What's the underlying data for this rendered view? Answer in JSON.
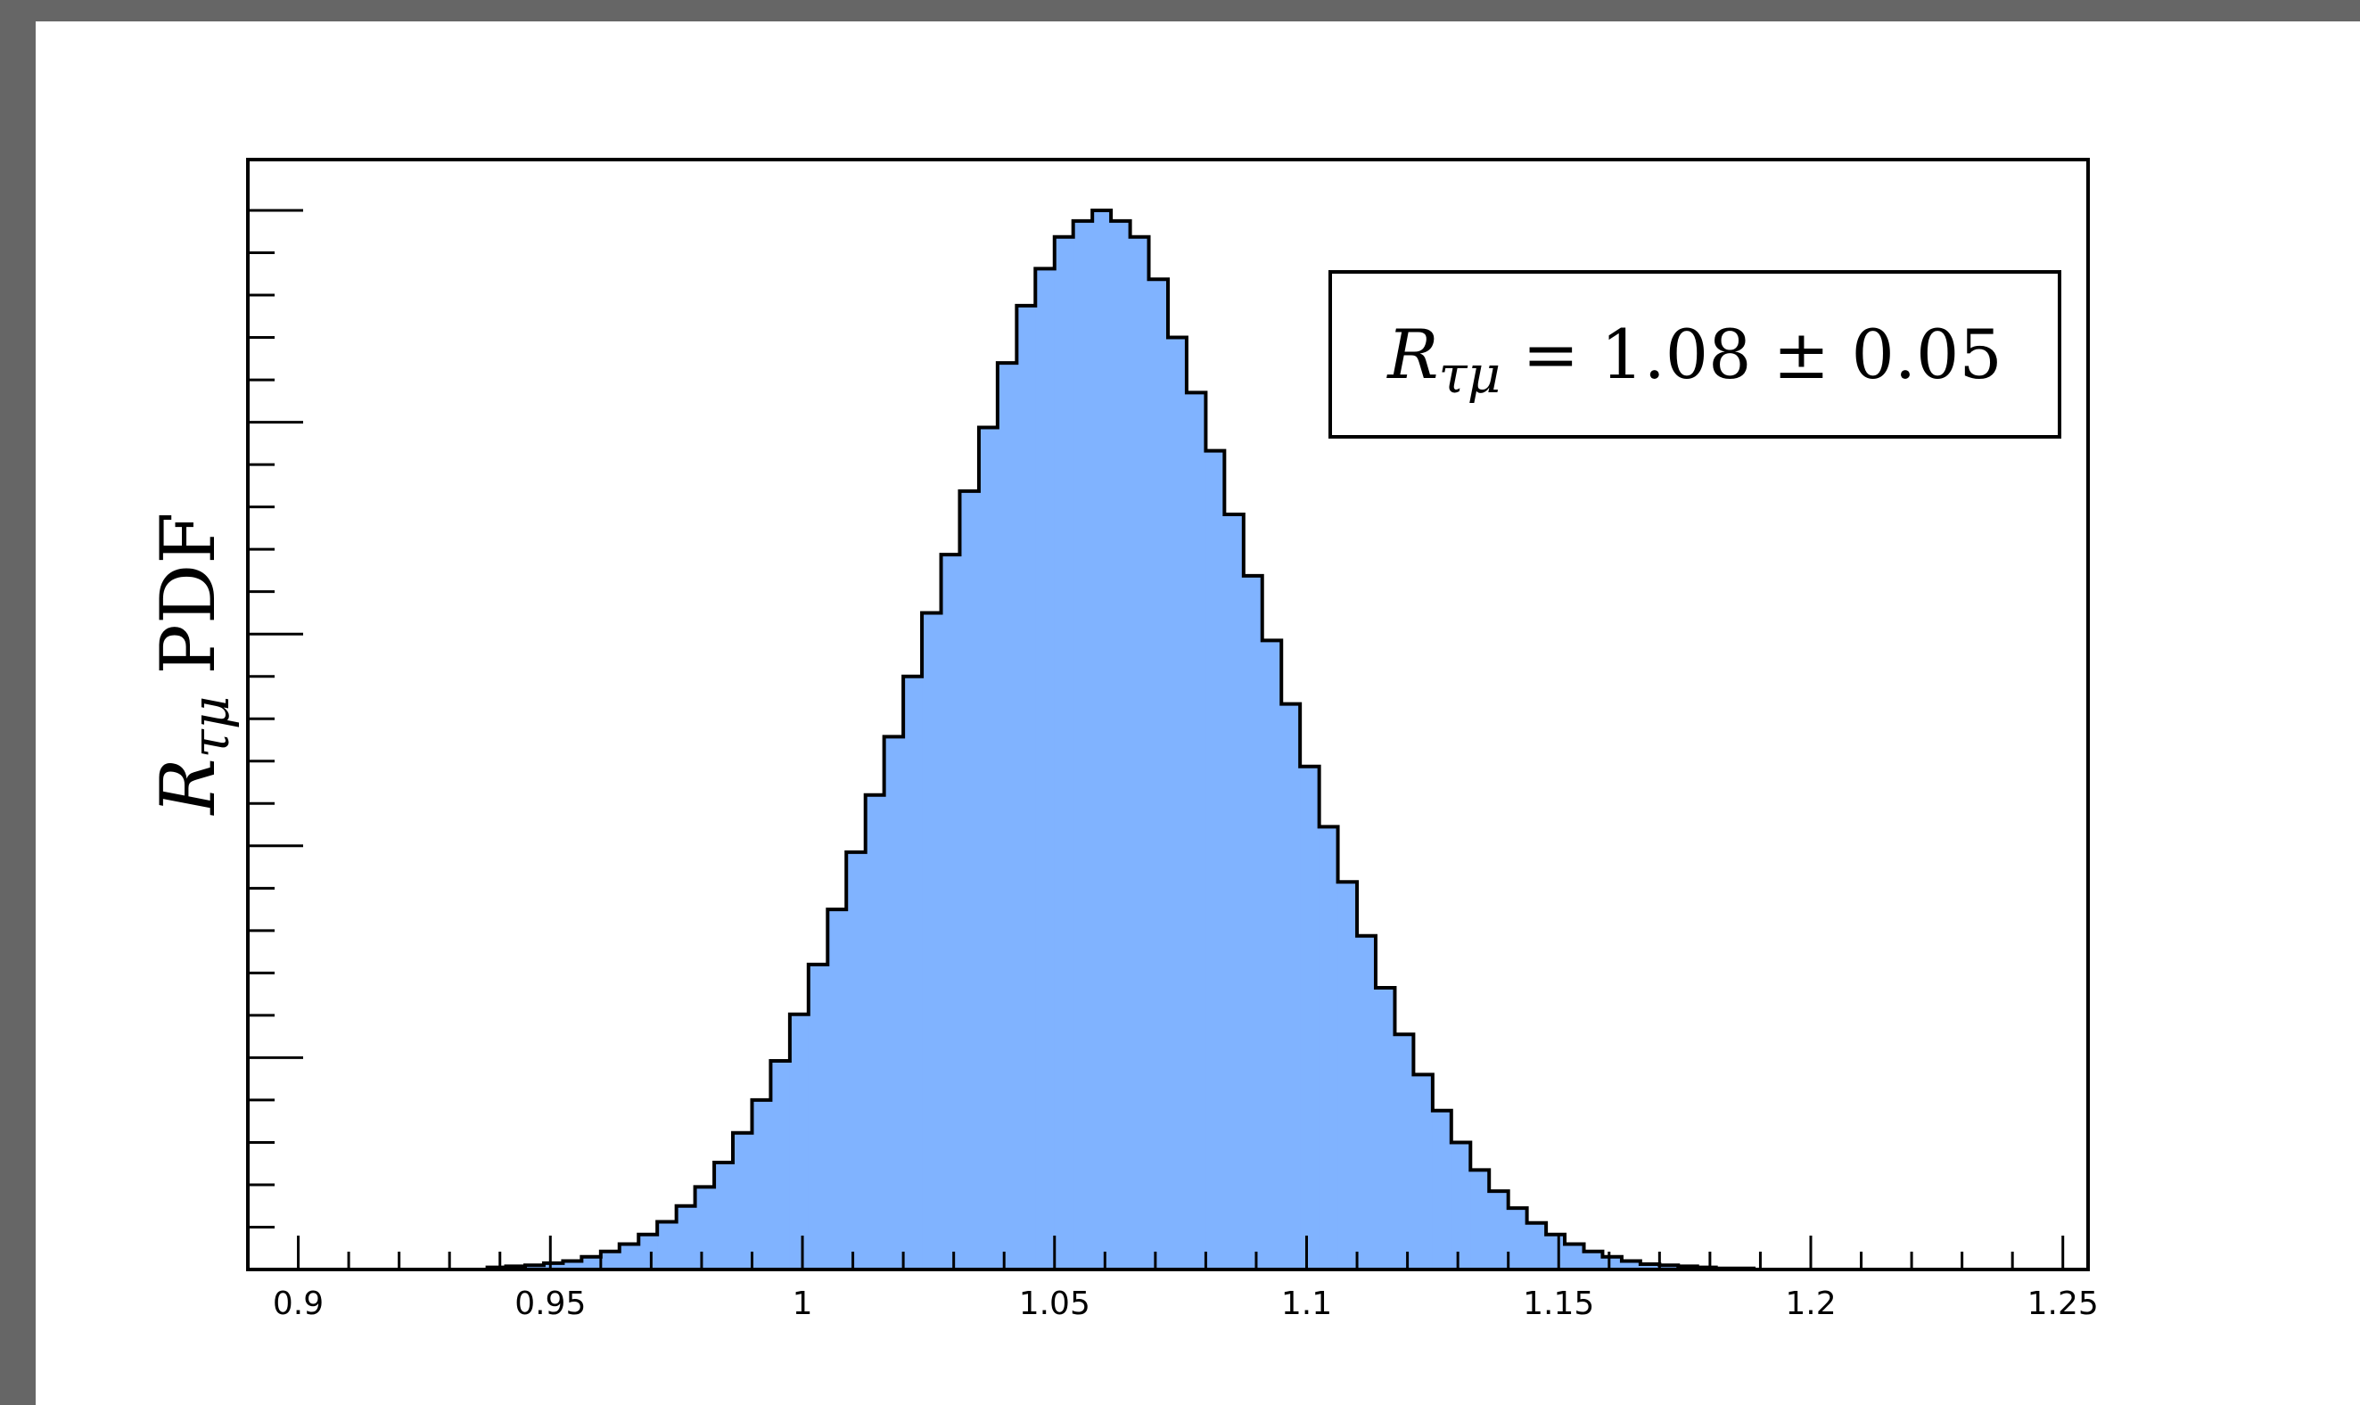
{
  "chart_data": {
    "type": "histogram",
    "xlim": [
      0.89,
      1.255
    ],
    "ylim": [
      0,
      1.0
    ],
    "xticks": [
      {
        "value": 0.9,
        "label": "0.9"
      },
      {
        "value": 0.95,
        "label": "0.95"
      },
      {
        "value": 1.0,
        "label": "1"
      },
      {
        "value": 1.05,
        "label": "1.05"
      },
      {
        "value": 1.1,
        "label": "1.1"
      },
      {
        "value": 1.15,
        "label": "1.15"
      },
      {
        "value": 1.2,
        "label": "1.2"
      },
      {
        "value": 1.25,
        "label": "1.25"
      }
    ],
    "ylabel": {
      "symbol": "R",
      "subscript": "τμ",
      "text": "PDF"
    },
    "annotation": {
      "symbol": "R",
      "subscript": "τμ",
      "text": " = 1.08 ± 0.05"
    },
    "bins": {
      "edges": [
        0.9375,
        0.9412,
        0.945,
        0.9487,
        0.9525,
        0.9562,
        0.96,
        0.9637,
        0.9675,
        0.9712,
        0.975,
        0.9787,
        0.9825,
        0.9862,
        0.99,
        0.9937,
        0.9975,
        1.0012,
        1.005,
        1.0087,
        1.0125,
        1.0162,
        1.02,
        1.0237,
        1.0275,
        1.0312,
        1.035,
        1.0387,
        1.0425,
        1.0462,
        1.05,
        1.0537,
        1.0575,
        1.0612,
        1.065,
        1.0687,
        1.0725,
        1.0762,
        1.08,
        1.0837,
        1.0875,
        1.0912,
        1.095,
        1.0987,
        1.1025,
        1.1062,
        1.11,
        1.1137,
        1.1175,
        1.1212,
        1.125,
        1.1287,
        1.1325,
        1.1362,
        1.14,
        1.1437,
        1.1475,
        1.1512,
        1.155,
        1.1587,
        1.1625,
        1.1662,
        1.17,
        1.1737,
        1.1775,
        1.1812,
        1.185,
        1.1887
      ],
      "values": [
        0.002,
        0.003,
        0.004,
        0.006,
        0.008,
        0.012,
        0.017,
        0.024,
        0.033,
        0.045,
        0.06,
        0.078,
        0.101,
        0.129,
        0.16,
        0.197,
        0.241,
        0.288,
        0.34,
        0.394,
        0.448,
        0.503,
        0.56,
        0.62,
        0.675,
        0.735,
        0.795,
        0.856,
        0.91,
        0.945,
        0.975,
        0.99,
        1.0,
        0.99,
        0.975,
        0.935,
        0.88,
        0.828,
        0.773,
        0.713,
        0.655,
        0.594,
        0.534,
        0.475,
        0.418,
        0.366,
        0.315,
        0.266,
        0.222,
        0.184,
        0.15,
        0.12,
        0.094,
        0.074,
        0.058,
        0.044,
        0.033,
        0.024,
        0.017,
        0.012,
        0.008,
        0.005,
        0.004,
        0.003,
        0.002,
        0.001,
        0.001
      ]
    },
    "colors": {
      "fill": "#80b3ff",
      "stroke": "#000000"
    },
    "legend": "none",
    "grid": false
  }
}
